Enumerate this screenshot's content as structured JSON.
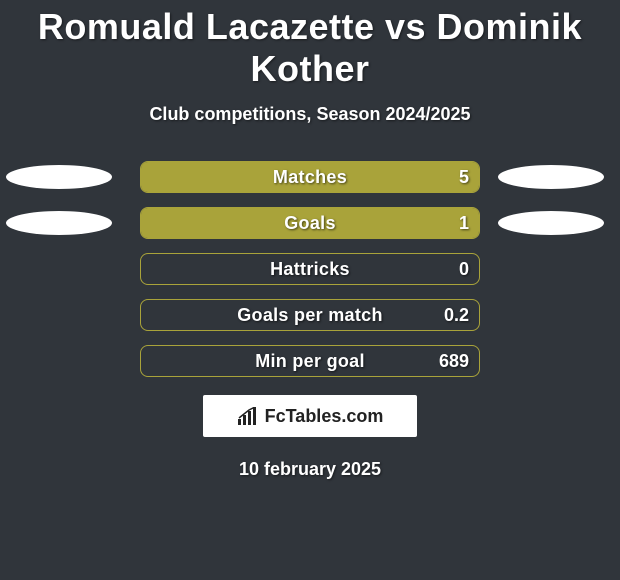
{
  "title": "Romuald Lacazette vs Dominik Kother",
  "subtitle": "Club competitions, Season 2024/2025",
  "date": "10 february 2025",
  "logo_text": "FcTables.com",
  "colors": {
    "background": "#30353b",
    "bar_fill": "#a9a33a",
    "bar_border": "#a9a33a",
    "oval": "#ffffff",
    "text": "#ffffff"
  },
  "stats": [
    {
      "label": "Matches",
      "value": "5",
      "fill_pct": 100,
      "show_left_oval": true,
      "show_right_oval": true
    },
    {
      "label": "Goals",
      "value": "1",
      "fill_pct": 100,
      "show_left_oval": true,
      "show_right_oval": true
    },
    {
      "label": "Hattricks",
      "value": "0",
      "fill_pct": 0,
      "show_left_oval": false,
      "show_right_oval": false
    },
    {
      "label": "Goals per match",
      "value": "0.2",
      "fill_pct": 0,
      "show_left_oval": false,
      "show_right_oval": false
    },
    {
      "label": "Min per goal",
      "value": "689",
      "fill_pct": 0,
      "show_left_oval": false,
      "show_right_oval": false
    }
  ]
}
